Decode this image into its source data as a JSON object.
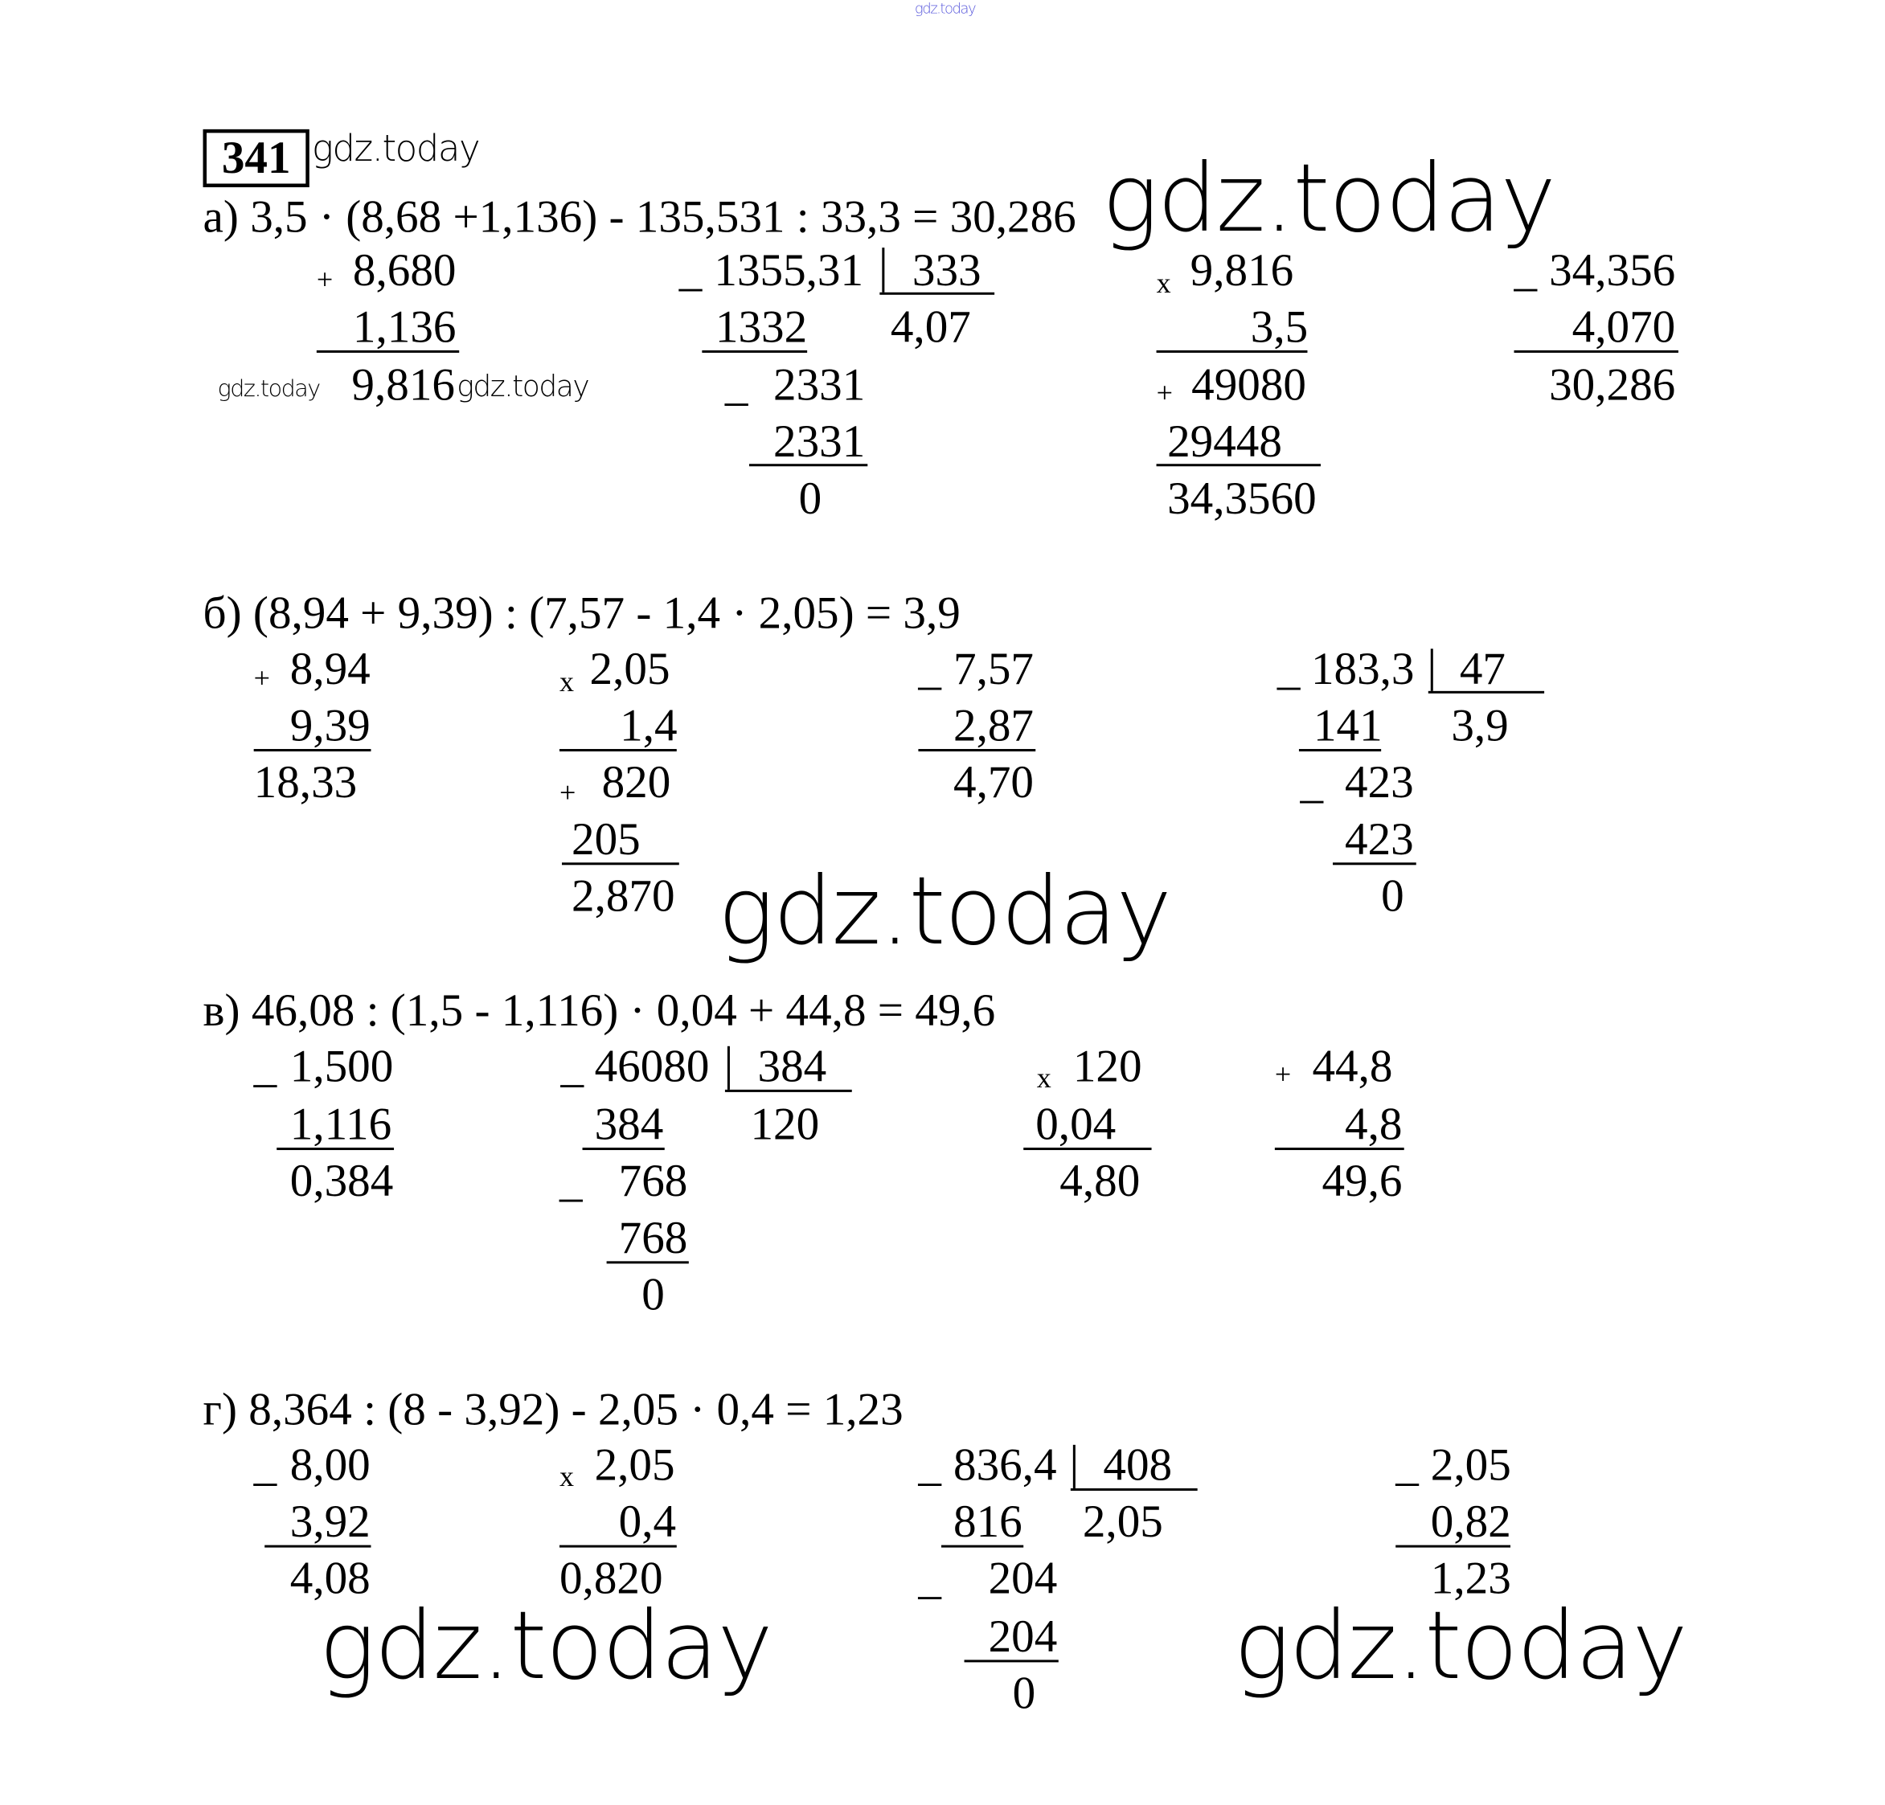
{
  "top_watermark": "gdz.today",
  "task_number": "341",
  "watermark": "gdz.today",
  "sections": [
    {
      "label": "а)",
      "expression": "3,5 · (8,68 +1,136) - 135,531 : 33,3 = 30,286",
      "columns": [
        {
          "items": [
            "+",
            "8,680",
            "1,136",
            "9,816"
          ]
        },
        {
          "items": [
            "_",
            "1355,31",
            "333",
            "1332",
            "4,07",
            "_",
            "2331",
            "2331",
            "0"
          ]
        },
        {
          "items": [
            "x",
            "9,816",
            "3,5",
            "+",
            "49080",
            "29448",
            "34,3560"
          ]
        },
        {
          "items": [
            "_",
            "34,356",
            "4,070",
            "30,286"
          ]
        }
      ]
    },
    {
      "label": "б)",
      "expression": "(8,94 +  9,39) : (7,57 - 1,4 · 2,05) = 3,9",
      "columns": [
        {
          "items": [
            "+",
            "8,94",
            "9,39",
            "18,33"
          ]
        },
        {
          "items": [
            "x",
            "2,05",
            "1,4",
            "+",
            "820",
            "205",
            "2,870"
          ]
        },
        {
          "items": [
            "_",
            "7,57",
            "2,87",
            "4,70"
          ]
        },
        {
          "items": [
            "_",
            "183,3",
            "47",
            "141",
            "3,9",
            "_",
            "423",
            "423",
            "0"
          ]
        }
      ]
    },
    {
      "label": "в)",
      "expression": "46,08 : (1,5 - 1,116) · 0,04 + 44,8 = 49,6",
      "columns": [
        {
          "items": [
            "_",
            "1,500",
            "1,116",
            "0,384"
          ]
        },
        {
          "items": [
            "_",
            "46080",
            "384",
            "384",
            "120",
            "_",
            "768",
            "768",
            "0"
          ]
        },
        {
          "items": [
            "x",
            "120",
            "0,04",
            "4,80"
          ]
        },
        {
          "items": [
            "+",
            "44,8",
            "4,8",
            "49,6"
          ]
        }
      ]
    },
    {
      "label": "г)",
      "expression": "8,364 : (8 - 3,92) - 2,05 · 0,4 = 1,23",
      "columns": [
        {
          "items": [
            "_",
            "8,00",
            "3,92",
            "4,08"
          ]
        },
        {
          "items": [
            "x",
            "2,05",
            "0,4",
            "0,820"
          ]
        },
        {
          "items": [
            "_",
            "836,4",
            "408",
            "816",
            "2,05",
            "_",
            "204",
            "204",
            "0"
          ]
        },
        {
          "items": [
            "_",
            "2,05",
            "0,82",
            "1,23"
          ]
        }
      ]
    }
  ]
}
